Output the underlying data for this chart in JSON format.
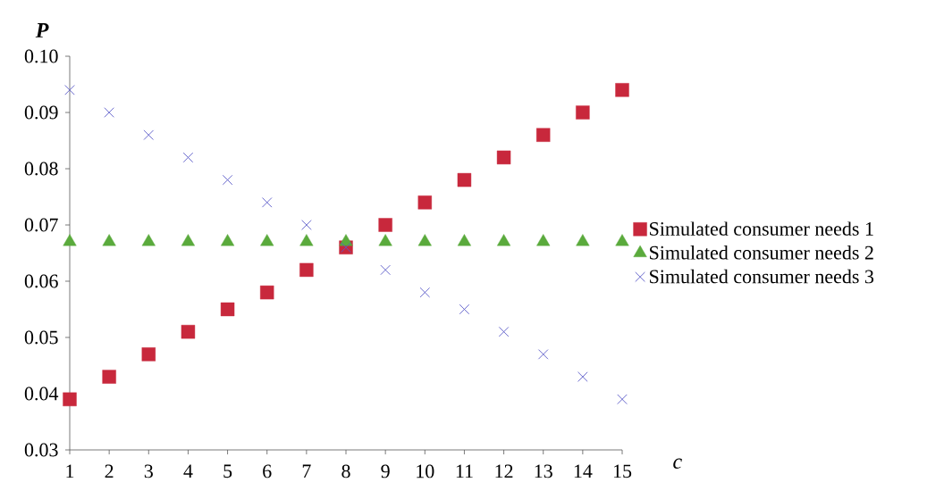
{
  "chart_data": {
    "type": "scatter",
    "xlabel": "c",
    "ylabel": "P",
    "x": [
      1,
      2,
      3,
      4,
      5,
      6,
      7,
      8,
      9,
      10,
      11,
      12,
      13,
      14,
      15
    ],
    "xlim": [
      1,
      15
    ],
    "xticks": [
      1,
      2,
      3,
      4,
      5,
      6,
      7,
      8,
      9,
      10,
      11,
      12,
      13,
      14,
      15
    ],
    "ylim": [
      0.03,
      0.1
    ],
    "yticks": [
      0.03,
      0.04,
      0.05,
      0.06,
      0.07,
      0.08,
      0.09,
      {
        "value": 0.1,
        "label": "0.10"
      }
    ],
    "grid": false,
    "legend": "right",
    "series": [
      {
        "name": "Simulated consumer needs 1",
        "color": "#c8283c",
        "marker": "square",
        "values": [
          0.039,
          0.043,
          0.047,
          0.051,
          0.055,
          0.058,
          0.062,
          0.066,
          0.07,
          0.074,
          0.078,
          0.082,
          0.086,
          0.09,
          0.094
        ]
      },
      {
        "name": "Simulated consumer needs 2",
        "color": "#5aaa3c",
        "marker": "triangle",
        "values": [
          0.067,
          0.067,
          0.067,
          0.067,
          0.067,
          0.067,
          0.067,
          0.067,
          0.067,
          0.067,
          0.067,
          0.067,
          0.067,
          0.067,
          0.067
        ]
      },
      {
        "name": "Simulated consumer needs 3",
        "color": "#5a5ac8",
        "marker": "cross",
        "values": [
          0.094,
          0.09,
          0.086,
          0.082,
          0.078,
          0.074,
          0.07,
          0.066,
          0.062,
          0.058,
          0.055,
          0.051,
          0.047,
          0.043,
          0.039
        ]
      }
    ]
  }
}
